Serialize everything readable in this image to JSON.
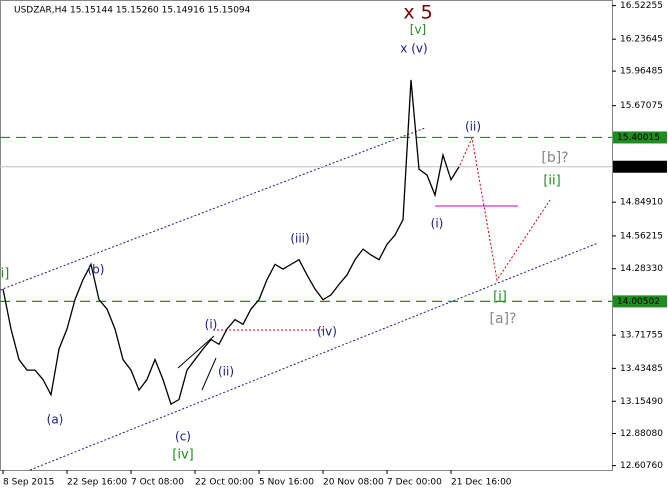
{
  "chart_data": {
    "type": "line",
    "title": "USDZAR,H4  15.15144 15.15260 15.14916 15.15094",
    "categories": [
      "8 Sep 2015",
      null,
      null,
      null,
      null,
      null,
      null,
      null,
      "22 Sep 16:00",
      null,
      null,
      null,
      null,
      null,
      null,
      null,
      "7 Oct 08:00",
      null,
      null,
      null,
      null,
      null,
      null,
      null,
      "22 Oct 00:00",
      null,
      null,
      null,
      null,
      null,
      null,
      null,
      "5 Nov 16:00",
      null,
      null,
      null,
      null,
      null,
      null,
      null,
      "20 Nov 08:00",
      null,
      null,
      null,
      null,
      null,
      null,
      null,
      "7 Dec 00:00",
      null,
      null,
      null,
      null,
      null,
      null,
      null,
      "21 Dec 16:00",
      null
    ],
    "series": [
      {
        "name": "USDZAR",
        "color": "#000000",
        "values": [
          14.11,
          13.77,
          13.51,
          13.42,
          13.42,
          13.34,
          13.21,
          13.6,
          13.77,
          14.02,
          14.19,
          14.32,
          14.02,
          13.94,
          13.77,
          13.51,
          13.42,
          13.25,
          13.34,
          13.51,
          13.34,
          13.13,
          13.17,
          13.42,
          13.51,
          13.6,
          13.68,
          13.64,
          13.77,
          13.85,
          13.81,
          13.94,
          14.02,
          14.19,
          14.32,
          14.28,
          14.32,
          14.36,
          14.23,
          14.11,
          14.02,
          14.06,
          14.15,
          14.23,
          14.36,
          14.45,
          14.4,
          14.36,
          14.49,
          14.57,
          14.7,
          15.89,
          15.13,
          15.08,
          14.91,
          15.25,
          15.04,
          15.15
        ]
      }
    ],
    "ylim": [
      12.57,
      16.57
    ],
    "yticks": [
      16.52255,
      16.23645,
      15.96485,
      15.67075,
      {
        "value": 14.8491,
        "label": "14.84910"
      },
      14.56215,
      {
        "value": 14.2833,
        "label": "14.28330"
      },
      13.71755,
      13.43485,
      {
        "value": 13.1549,
        "label": "13.15490"
      },
      {
        "value": 12.8808,
        "label": "12.88080"
      },
      {
        "value": 12.6076,
        "label": "12.60760"
      }
    ],
    "levels": [
      15.40015,
      14.00502
    ],
    "level_color": "#1e8c1e",
    "last_price": 15.15094,
    "annotations": [
      "x 5",
      "[v]",
      "x (v)",
      "(ii)",
      "[b]?",
      "[ii]",
      "(i)",
      "[i]",
      "[a]?",
      "(iii)",
      "(iv)",
      "(b)",
      "(a)",
      "(c)",
      "[iv]",
      "(i)",
      "(ii)",
      "i]"
    ]
  }
}
